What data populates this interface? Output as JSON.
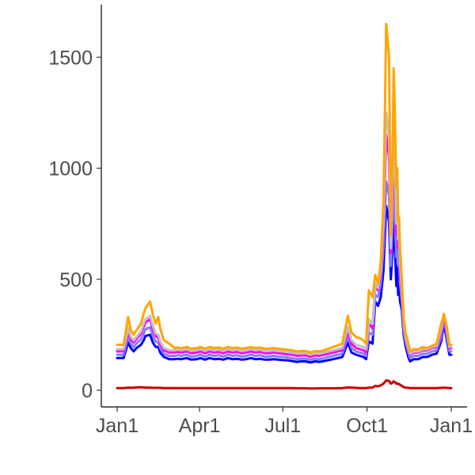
{
  "chart_data": {
    "type": "line",
    "title": "",
    "xlabel": "",
    "ylabel": "",
    "x_ticks": [
      {
        "label": "Jan1",
        "day": 1
      },
      {
        "label": "Apr1",
        "day": 91
      },
      {
        "label": "Jul1",
        "day": 182
      },
      {
        "label": "Oct1",
        "day": 274
      },
      {
        "label": "Jan1",
        "day": 366
      }
    ],
    "y_ticks": [
      0,
      500,
      1000,
      1500
    ],
    "xlim": [
      1,
      366
    ],
    "ylim": [
      0,
      1700
    ],
    "grid": false,
    "legend": "none",
    "x": [
      1,
      8,
      13,
      16,
      19,
      22,
      27,
      30,
      32,
      37,
      40,
      43,
      46,
      48,
      52,
      58,
      64,
      67,
      71,
      77,
      82,
      88,
      92,
      97,
      102,
      107,
      112,
      117,
      122,
      127,
      132,
      137,
      142,
      147,
      152,
      157,
      162,
      167,
      172,
      177,
      182,
      187,
      192,
      197,
      202,
      207,
      212,
      217,
      222,
      227,
      237,
      247,
      253,
      257,
      262,
      266,
      270,
      273,
      276,
      280,
      283,
      286,
      289,
      292,
      295,
      298,
      300,
      302,
      303,
      304,
      306,
      307,
      308,
      309,
      310,
      312,
      313,
      314,
      316,
      319,
      321,
      325,
      330,
      335,
      340,
      345,
      350,
      355,
      358,
      361,
      364,
      366
    ],
    "series": [
      {
        "color": "#0000ff",
        "values": [
          145,
          145,
          215,
          190,
          175,
          190,
          205,
          225,
          245,
          250,
          215,
          195,
          195,
          170,
          150,
          140,
          140,
          142,
          140,
          145,
          138,
          140,
          145,
          138,
          145,
          140,
          142,
          138,
          145,
          140,
          142,
          138,
          140,
          145,
          140,
          142,
          138,
          138,
          140,
          138,
          136,
          135,
          132,
          128,
          130,
          130,
          125,
          130,
          128,
          132,
          140,
          150,
          215,
          170,
          160,
          155,
          150,
          140,
          220,
          210,
          400,
          380,
          420,
          540,
          830,
          760,
          500,
          640,
          760,
          700,
          470,
          560,
          430,
          470,
          400,
          360,
          300,
          250,
          200,
          150,
          130,
          140,
          140,
          150,
          150,
          160,
          165,
          220,
          300,
          230,
          160,
          160
        ]
      },
      {
        "color": "#8080ff",
        "values": [
          160,
          160,
          240,
          210,
          195,
          210,
          230,
          255,
          275,
          285,
          245,
          220,
          215,
          190,
          165,
          155,
          155,
          158,
          155,
          160,
          152,
          155,
          160,
          152,
          160,
          155,
          158,
          152,
          160,
          155,
          158,
          152,
          155,
          160,
          155,
          158,
          152,
          152,
          155,
          152,
          150,
          148,
          145,
          140,
          142,
          142,
          137,
          142,
          140,
          145,
          155,
          165,
          240,
          190,
          175,
          170,
          165,
          155,
          260,
          250,
          430,
          420,
          480,
          640,
          940,
          880,
          560,
          780,
          920,
          840,
          600,
          720,
          560,
          580,
          480,
          400,
          340,
          270,
          220,
          170,
          145,
          155,
          155,
          165,
          165,
          175,
          180,
          240,
          320,
          250,
          175,
          175
        ]
      },
      {
        "color": "#ff00ff",
        "values": [
          175,
          175,
          265,
          230,
          215,
          230,
          255,
          285,
          305,
          320,
          275,
          245,
          235,
          210,
          180,
          170,
          170,
          173,
          170,
          175,
          167,
          170,
          175,
          167,
          175,
          170,
          173,
          167,
          175,
          170,
          173,
          167,
          170,
          175,
          170,
          173,
          167,
          167,
          170,
          167,
          165,
          162,
          160,
          155,
          157,
          157,
          150,
          157,
          155,
          160,
          170,
          180,
          265,
          210,
          190,
          185,
          180,
          170,
          300,
          280,
          470,
          450,
          520,
          720,
          1150,
          1050,
          620,
          900,
          1100,
          1000,
          700,
          850,
          640,
          660,
          540,
          430,
          370,
          290,
          235,
          185,
          160,
          170,
          170,
          180,
          180,
          190,
          195,
          260,
          335,
          270,
          190,
          190
        ]
      },
      {
        "color": "#c0c0c0",
        "values": [
          185,
          185,
          280,
          240,
          225,
          240,
          265,
          300,
          320,
          335,
          290,
          255,
          250,
          220,
          190,
          180,
          180,
          183,
          180,
          185,
          177,
          180,
          185,
          177,
          185,
          180,
          183,
          177,
          185,
          180,
          183,
          177,
          180,
          185,
          180,
          183,
          177,
          177,
          180,
          177,
          175,
          172,
          170,
          165,
          167,
          167,
          160,
          167,
          165,
          170,
          180,
          190,
          285,
          225,
          205,
          200,
          195,
          185,
          320,
          300,
          480,
          460,
          540,
          760,
          1250,
          1150,
          640,
          960,
          1200,
          1080,
          750,
          900,
          680,
          700,
          570,
          450,
          385,
          300,
          240,
          190,
          165,
          175,
          175,
          185,
          185,
          195,
          200,
          275,
          345,
          280,
          195,
          195
        ]
      },
      {
        "color": "#ffa500",
        "values": [
          205,
          205,
          330,
          270,
          250,
          270,
          300,
          345,
          370,
          400,
          340,
          300,
          330,
          280,
          225,
          210,
          190,
          193,
          190,
          195,
          187,
          190,
          195,
          187,
          195,
          190,
          193,
          187,
          195,
          190,
          193,
          187,
          190,
          195,
          190,
          193,
          187,
          187,
          190,
          187,
          185,
          182,
          180,
          175,
          177,
          177,
          170,
          177,
          175,
          180,
          195,
          210,
          335,
          260,
          240,
          235,
          225,
          210,
          450,
          420,
          520,
          480,
          580,
          850,
          1650,
          1500,
          700,
          1080,
          1450,
          1320,
          920,
          1000,
          760,
          780,
          640,
          500,
          420,
          320,
          260,
          210,
          175,
          185,
          185,
          195,
          190,
          200,
          210,
          300,
          340,
          290,
          205,
          205
        ]
      },
      {
        "color": "#cc0000",
        "values": [
          10,
          10,
          12,
          11,
          12,
          13,
          14,
          13,
          12,
          12,
          11,
          11,
          11,
          11,
          10,
          10,
          10,
          10,
          10,
          10,
          10,
          10,
          10,
          10,
          10,
          10,
          10,
          10,
          10,
          10,
          10,
          10,
          10,
          10,
          10,
          10,
          10,
          10,
          10,
          10,
          10,
          10,
          10,
          9,
          9,
          9,
          8,
          8,
          9,
          9,
          9,
          10,
          13,
          12,
          11,
          10,
          10,
          10,
          12,
          12,
          20,
          18,
          22,
          30,
          45,
          42,
          30,
          35,
          40,
          38,
          30,
          32,
          28,
          28,
          25,
          20,
          18,
          14,
          12,
          11,
          10,
          10,
          10,
          10,
          10,
          10,
          10,
          11,
          12,
          11,
          10,
          10
        ]
      }
    ]
  }
}
